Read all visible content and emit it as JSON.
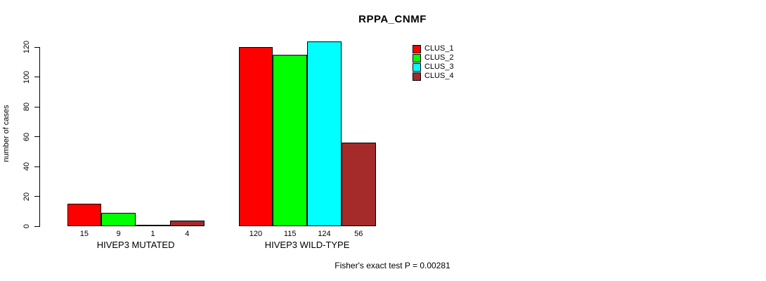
{
  "chart_data": {
    "type": "bar",
    "title": "RPPA_CNMF",
    "ylabel": "number of cases",
    "xlabel": "",
    "annotation": "Fisher's exact test P = 0.00281",
    "ylim": [
      0,
      124
    ],
    "yticks": [
      0,
      20,
      40,
      60,
      80,
      100,
      120
    ],
    "grid": false,
    "legend_position": "top-right",
    "categories": [
      "HIVEP3 MUTATED",
      "HIVEP3 WILD-TYPE"
    ],
    "series": [
      {
        "name": "CLUS_1",
        "color": "#ff0000",
        "values": [
          15,
          120
        ]
      },
      {
        "name": "CLUS_2",
        "color": "#00ff00",
        "values": [
          9,
          115
        ]
      },
      {
        "name": "CLUS_3",
        "color": "#00ffff",
        "values": [
          1,
          124
        ]
      },
      {
        "name": "CLUS_4",
        "color": "#a52a2a",
        "values": [
          4,
          56
        ]
      }
    ]
  }
}
